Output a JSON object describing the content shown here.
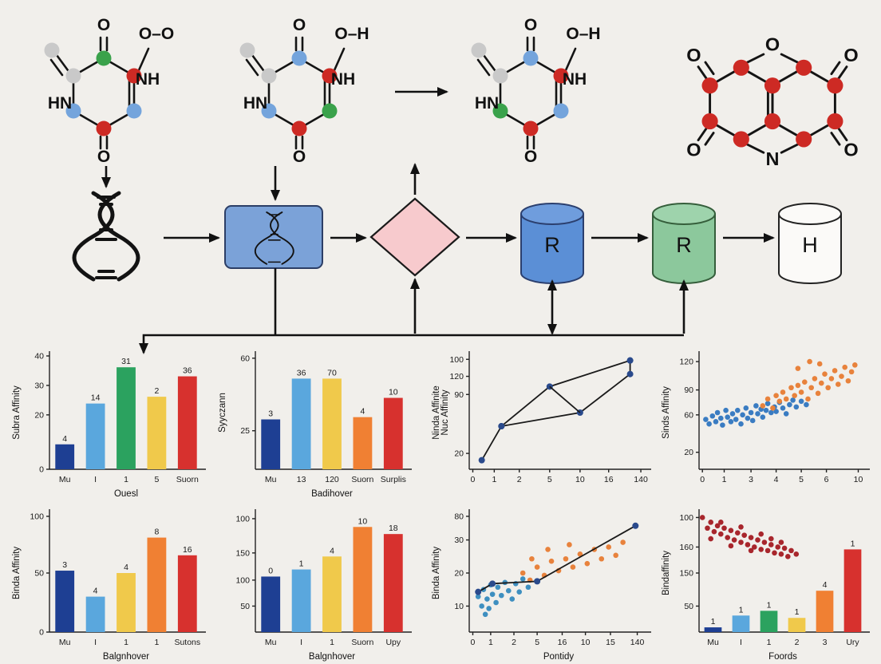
{
  "figure": {
    "background": "#f1efeb"
  },
  "palette": {
    "atom_red": "#cd2a24",
    "atom_blue": "#74a4dc",
    "atom_green": "#3aa24b",
    "atom_gray": "#c9c9c9",
    "bar_navy": "#1e3f93",
    "bar_lightblue": "#5aa7dd",
    "bar_green": "#2ba25f",
    "bar_yellow": "#f0c94b",
    "bar_orange": "#f08033",
    "bar_red": "#d7312e",
    "scatter_blue": "#3a7cc2",
    "scatter_orange": "#e8823c",
    "scatter_darkred": "#a8262c",
    "line_marker_navy": "#2a4a8c",
    "pipeline_box_blue": "#7ba2d8",
    "diamond_pink": "#f7cacd",
    "cylinder_blue": "#5b8fd6",
    "cylinder_green": "#8cc89c",
    "cylinder_white": "#fbfaf8"
  },
  "molecules": [
    {
      "name": "molecule-1",
      "labels": {
        "top": "O",
        "substituent": "O–O",
        "right": "NH",
        "left": "HN",
        "bottom": "O"
      }
    },
    {
      "name": "molecule-2",
      "labels": {
        "top": "O",
        "substituent": "O–H",
        "right": "NH",
        "left": "HN",
        "bottom": "O"
      }
    },
    {
      "name": "molecule-3",
      "labels": {
        "top": "O",
        "substituent": "O–H",
        "right": "NH",
        "left": "HN",
        "bottom": "O"
      }
    },
    {
      "name": "molecule-4",
      "labels": {
        "top_left": "O",
        "top_center": "O",
        "top_right": "O",
        "bottom_left": "O",
        "bottom_center": "N",
        "bottom_right": "O"
      }
    }
  ],
  "pipeline": {
    "cylinders": [
      {
        "label": "R"
      },
      {
        "label": "R"
      },
      {
        "label": "H"
      }
    ]
  },
  "chart_data": [
    {
      "type": "bar",
      "ylabels": [
        "Subra Affinity"
      ],
      "xlabel": "Ouesl",
      "y_ticks": [
        [
          "40",
          0.0
        ],
        [
          "30",
          0.26
        ],
        [
          "20",
          0.52
        ],
        [
          "0",
          1.0
        ]
      ],
      "bars": {
        "categories": [
          "Mu",
          "I",
          "1",
          "5",
          "Suorn"
        ],
        "value_labels": [
          "4",
          "14",
          "31",
          "2",
          "36"
        ],
        "heights_pct": [
          22,
          58,
          90,
          64,
          82
        ],
        "colors": [
          "#1e3f93",
          "#5aa7dd",
          "#2ba25f",
          "#f0c94b",
          "#d7312e"
        ]
      }
    },
    {
      "type": "bar",
      "ylabels": [
        "Syyczann"
      ],
      "xlabel": "Badihover",
      "y_ticks": [
        [
          "60",
          0.02
        ],
        [
          "25",
          0.66
        ]
      ],
      "bars": {
        "categories": [
          "Mu",
          "13",
          "120",
          "Suorn",
          "Surplis"
        ],
        "value_labels": [
          "3",
          "36",
          "70",
          "4",
          "10"
        ],
        "heights_pct": [
          44,
          80,
          80,
          46,
          63
        ],
        "colors": [
          "#1e3f93",
          "#5aa7dd",
          "#f0c94b",
          "#f08033",
          "#d7312e"
        ]
      }
    },
    {
      "type": "line",
      "ylabels": [
        "Ninda Affinite",
        "Nuc Affinity"
      ],
      "xlabel": "",
      "y_ticks": [
        [
          "100",
          0.03
        ],
        [
          "120",
          0.18
        ],
        [
          "90",
          0.34
        ],
        [
          "20",
          0.86
        ]
      ],
      "x_ticks": [
        [
          "0",
          0.02
        ],
        [
          "1",
          0.14
        ],
        [
          "2",
          0.28
        ],
        [
          "5",
          0.45
        ],
        [
          "10",
          0.62
        ],
        [
          "16",
          0.78
        ],
        [
          "140",
          0.96
        ]
      ],
      "lines": [
        {
          "points": [
            [
              0.07,
              0.08
            ],
            [
              0.18,
              0.38
            ],
            [
              0.45,
              0.73
            ],
            [
              0.9,
              0.96
            ]
          ],
          "marker": "#2a4a8c"
        },
        {
          "points": [
            [
              0.18,
              0.38
            ],
            [
              0.62,
              0.5
            ],
            [
              0.9,
              0.84
            ],
            [
              0.9,
              0.96
            ]
          ],
          "marker": "#2a4a8c"
        },
        {
          "points": [
            [
              0.45,
              0.73
            ],
            [
              0.62,
              0.5
            ]
          ]
        }
      ]
    },
    {
      "type": "scatter",
      "ylabels": [
        "Sinds Affinity"
      ],
      "xlabel": "",
      "y_ticks": [
        [
          "120",
          0.05
        ],
        [
          "90",
          0.3
        ],
        [
          "60",
          0.52
        ],
        [
          "20",
          0.85
        ]
      ],
      "x_ticks": [
        [
          "0",
          0.02
        ],
        [
          "1",
          0.15
        ],
        [
          "3",
          0.31
        ],
        [
          "4",
          0.46
        ],
        [
          "5",
          0.61
        ],
        [
          "6",
          0.76
        ],
        [
          "10",
          0.95
        ]
      ],
      "scatter": [
        {
          "color": "#3a7cc2",
          "points": [
            [
              0.04,
              0.44
            ],
            [
              0.06,
              0.4
            ],
            [
              0.08,
              0.47
            ],
            [
              0.1,
              0.42
            ],
            [
              0.11,
              0.5
            ],
            [
              0.13,
              0.45
            ],
            [
              0.14,
              0.39
            ],
            [
              0.16,
              0.52
            ],
            [
              0.17,
              0.46
            ],
            [
              0.19,
              0.42
            ],
            [
              0.2,
              0.49
            ],
            [
              0.22,
              0.44
            ],
            [
              0.23,
              0.52
            ],
            [
              0.25,
              0.4
            ],
            [
              0.26,
              0.48
            ],
            [
              0.28,
              0.54
            ],
            [
              0.29,
              0.45
            ],
            [
              0.31,
              0.5
            ],
            [
              0.32,
              0.43
            ],
            [
              0.34,
              0.56
            ],
            [
              0.35,
              0.49
            ],
            [
              0.37,
              0.53
            ],
            [
              0.38,
              0.46
            ],
            [
              0.4,
              0.52
            ],
            [
              0.41,
              0.58
            ],
            [
              0.43,
              0.5
            ],
            [
              0.45,
              0.55
            ],
            [
              0.46,
              0.51
            ],
            [
              0.48,
              0.59
            ],
            [
              0.5,
              0.54
            ],
            [
              0.52,
              0.49
            ],
            [
              0.54,
              0.57
            ],
            [
              0.56,
              0.61
            ],
            [
              0.58,
              0.55
            ],
            [
              0.61,
              0.6
            ],
            [
              0.64,
              0.57
            ]
          ]
        },
        {
          "color": "#e8823c",
          "points": [
            [
              0.38,
              0.56
            ],
            [
              0.41,
              0.62
            ],
            [
              0.44,
              0.54
            ],
            [
              0.46,
              0.65
            ],
            [
              0.48,
              0.6
            ],
            [
              0.5,
              0.68
            ],
            [
              0.52,
              0.62
            ],
            [
              0.55,
              0.72
            ],
            [
              0.57,
              0.65
            ],
            [
              0.59,
              0.74
            ],
            [
              0.61,
              0.68
            ],
            [
              0.63,
              0.77
            ],
            [
              0.65,
              0.62
            ],
            [
              0.67,
              0.72
            ],
            [
              0.69,
              0.8
            ],
            [
              0.71,
              0.67
            ],
            [
              0.73,
              0.76
            ],
            [
              0.75,
              0.84
            ],
            [
              0.77,
              0.72
            ],
            [
              0.79,
              0.8
            ],
            [
              0.81,
              0.87
            ],
            [
              0.83,
              0.75
            ],
            [
              0.85,
              0.82
            ],
            [
              0.87,
              0.9
            ],
            [
              0.89,
              0.78
            ],
            [
              0.91,
              0.86
            ],
            [
              0.93,
              0.92
            ],
            [
              0.66,
              0.95
            ],
            [
              0.72,
              0.93
            ],
            [
              0.59,
              0.89
            ]
          ]
        }
      ]
    },
    {
      "type": "bar",
      "ylabels": [
        "Binda Affinity"
      ],
      "xlabel": "Balgnhover",
      "y_ticks": [
        [
          "100",
          0.02
        ],
        [
          "50",
          0.5
        ],
        [
          "0",
          1.0
        ]
      ],
      "bars": {
        "categories": [
          "Mu",
          "I",
          "1",
          "1",
          "Sutons"
        ],
        "value_labels": [
          "3",
          "4",
          "4",
          "8",
          "16"
        ],
        "heights_pct": [
          52,
          30,
          50,
          80,
          65
        ],
        "colors": [
          "#1e3f93",
          "#5aa7dd",
          "#f0c94b",
          "#f08033",
          "#d7312e"
        ]
      }
    },
    {
      "type": "bar",
      "ylabels": [],
      "xlabel": "Balgnhover",
      "y_ticks": [
        [
          "100",
          0.04
        ],
        [
          "150",
          0.33
        ],
        [
          "100",
          0.56
        ],
        [
          "50",
          0.78
        ]
      ],
      "bars": {
        "categories": [
          "Mu",
          "I",
          "1",
          "Suorn",
          "Upy"
        ],
        "value_labels": [
          "0",
          "1",
          "4",
          "10",
          "18"
        ],
        "heights_pct": [
          47,
          53,
          64,
          89,
          83
        ],
        "colors": [
          "#1e3f93",
          "#5aa7dd",
          "#f0c94b",
          "#f08033",
          "#d7312e"
        ]
      }
    },
    {
      "type": "scatter-line",
      "ylabels": [
        "Binda Affinity"
      ],
      "xlabel": "Pontidy",
      "y_ticks": [
        [
          "80",
          0.02
        ],
        [
          "30",
          0.22
        ],
        [
          "20",
          0.5
        ],
        [
          "10",
          0.78
        ]
      ],
      "x_ticks": [
        [
          "0",
          0.02
        ],
        [
          "1",
          0.12
        ],
        [
          "2",
          0.25
        ],
        [
          "5",
          0.38
        ],
        [
          "16",
          0.52
        ],
        [
          "10",
          0.65
        ],
        [
          "15",
          0.79
        ],
        [
          "140",
          0.94
        ]
      ],
      "scatter": [
        {
          "color": "#3e8fc0",
          "points": [
            [
              0.05,
              0.3
            ],
            [
              0.07,
              0.22
            ],
            [
              0.08,
              0.36
            ],
            [
              0.1,
              0.28
            ],
            [
              0.12,
              0.4
            ],
            [
              0.13,
              0.32
            ],
            [
              0.15,
              0.25
            ],
            [
              0.16,
              0.38
            ],
            [
              0.18,
              0.31
            ],
            [
              0.2,
              0.42
            ],
            [
              0.22,
              0.35
            ],
            [
              0.24,
              0.28
            ],
            [
              0.26,
              0.41
            ],
            [
              0.28,
              0.34
            ],
            [
              0.09,
              0.15
            ],
            [
              0.11,
              0.2
            ],
            [
              0.3,
              0.45
            ],
            [
              0.33,
              0.38
            ]
          ]
        },
        {
          "color": "#e8823c",
          "points": [
            [
              0.3,
              0.5
            ],
            [
              0.34,
              0.44
            ],
            [
              0.38,
              0.55
            ],
            [
              0.42,
              0.48
            ],
            [
              0.46,
              0.6
            ],
            [
              0.5,
              0.52
            ],
            [
              0.54,
              0.62
            ],
            [
              0.58,
              0.55
            ],
            [
              0.62,
              0.66
            ],
            [
              0.66,
              0.58
            ],
            [
              0.7,
              0.7
            ],
            [
              0.74,
              0.62
            ],
            [
              0.78,
              0.72
            ],
            [
              0.82,
              0.65
            ],
            [
              0.86,
              0.76
            ],
            [
              0.44,
              0.7
            ],
            [
              0.56,
              0.74
            ],
            [
              0.35,
              0.62
            ]
          ]
        }
      ],
      "lines": [
        {
          "points": [
            [
              0.05,
              0.34
            ],
            [
              0.13,
              0.41
            ],
            [
              0.38,
              0.43
            ],
            [
              0.93,
              0.9
            ]
          ],
          "marker": "#2a4a8c"
        }
      ]
    },
    {
      "type": "scatter-bar",
      "ylabels": [
        "Bindaffinity"
      ],
      "xlabel": "Foords",
      "y_ticks": [
        [
          "100",
          0.03
        ],
        [
          "160",
          0.28
        ],
        [
          "150",
          0.5
        ],
        [
          "50",
          0.78
        ]
      ],
      "bars": {
        "categories": [
          "Mu",
          "I",
          "1",
          "2",
          "3",
          "Ury"
        ],
        "value_labels": [
          "1",
          "1",
          "1",
          "1",
          "4",
          "1"
        ],
        "heights_pct": [
          4,
          14,
          18,
          12,
          35,
          70
        ],
        "colors": [
          "#1e3f93",
          "#5aa7dd",
          "#2ba25f",
          "#f0c94b",
          "#f08033",
          "#d7312e"
        ]
      },
      "scatter": [
        {
          "color": "#a8262c",
          "points": [
            [
              0.02,
              0.97
            ],
            [
              0.05,
              0.88
            ],
            [
              0.07,
              0.93
            ],
            [
              0.09,
              0.85
            ],
            [
              0.11,
              0.9
            ],
            [
              0.13,
              0.83
            ],
            [
              0.15,
              0.88
            ],
            [
              0.17,
              0.8
            ],
            [
              0.19,
              0.86
            ],
            [
              0.21,
              0.78
            ],
            [
              0.23,
              0.84
            ],
            [
              0.25,
              0.76
            ],
            [
              0.27,
              0.82
            ],
            [
              0.29,
              0.74
            ],
            [
              0.31,
              0.8
            ],
            [
              0.33,
              0.72
            ],
            [
              0.35,
              0.78
            ],
            [
              0.37,
              0.7
            ],
            [
              0.39,
              0.76
            ],
            [
              0.41,
              0.69
            ],
            [
              0.43,
              0.74
            ],
            [
              0.45,
              0.67
            ],
            [
              0.47,
              0.72
            ],
            [
              0.49,
              0.66
            ],
            [
              0.51,
              0.71
            ],
            [
              0.53,
              0.64
            ],
            [
              0.55,
              0.69
            ],
            [
              0.07,
              0.79
            ],
            [
              0.13,
              0.93
            ],
            [
              0.19,
              0.73
            ],
            [
              0.25,
              0.89
            ],
            [
              0.31,
              0.69
            ],
            [
              0.37,
              0.83
            ],
            [
              0.43,
              0.79
            ],
            [
              0.49,
              0.76
            ],
            [
              0.58,
              0.66
            ]
          ]
        }
      ]
    }
  ]
}
